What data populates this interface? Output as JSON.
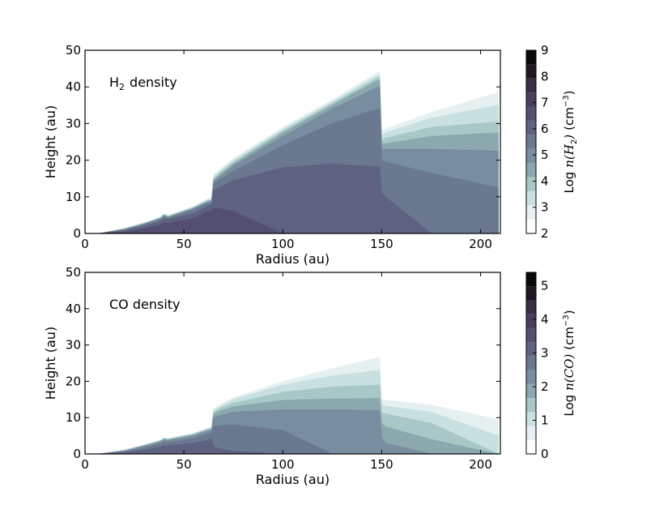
{
  "chart_data": [
    {
      "type": "contourf",
      "annotation": "H",
      "annotation_sub": "2",
      "annotation_suffix": "density",
      "xlabel": "Radius (au)",
      "ylabel": "Height (au)",
      "xlim": [
        0,
        210
      ],
      "ylim": [
        0,
        50
      ],
      "xticks": [
        "0",
        "50",
        "100",
        "150",
        "200"
      ],
      "yticks": [
        "0",
        "10",
        "20",
        "30",
        "40",
        "50"
      ],
      "colorbar": {
        "label_prefix": "Log",
        "label_var": "n(H",
        "label_var_sub": "2",
        "label_var_end": ")",
        "label_unit": "(cm",
        "label_unit_sup": "−3",
        "label_unit_end": ")",
        "min": 2,
        "max": 9,
        "ticks": [
          "2",
          "3",
          "4",
          "5",
          "6",
          "7",
          "8",
          "9"
        ],
        "colors": [
          "#ffffff",
          "#e6f0f0",
          "#c8e0e0",
          "#a8c8c8",
          "#8aa8ad",
          "#788da0",
          "#6a7890",
          "#5e6280",
          "#534f70",
          "#4a3e5f",
          "#3a2d45",
          "#1f1824",
          "#0a0a0a"
        ]
      },
      "x_samples": [
        0,
        7,
        20,
        30,
        38,
        40,
        42,
        55,
        62,
        64,
        65,
        68,
        75,
        100,
        125,
        148,
        149,
        150,
        152,
        175,
        209
      ],
      "contour_tops": [
        [
          0,
          0,
          1.5,
          3.0,
          4.5,
          5.5,
          5.0,
          7.5,
          9.5,
          9.8,
          16.0,
          17.5,
          20.5,
          29.0,
          36.5,
          44.0,
          44.0,
          28.0,
          28.5,
          33.0,
          38.5
        ],
        [
          0,
          0,
          1.4,
          2.9,
          4.4,
          5.3,
          4.8,
          7.3,
          9.2,
          9.5,
          15.5,
          17.0,
          20.0,
          28.5,
          36.0,
          43.2,
          43.2,
          26.5,
          27.5,
          31.5,
          35.0
        ],
        [
          0,
          0,
          1.3,
          2.8,
          4.3,
          5.2,
          4.7,
          7.1,
          9.0,
          9.2,
          15.0,
          16.5,
          19.5,
          28.0,
          35.5,
          42.5,
          42.5,
          25.5,
          26.0,
          29.0,
          30.5
        ],
        [
          0,
          0,
          1.2,
          2.7,
          4.2,
          5.0,
          4.6,
          7.0,
          8.8,
          9.0,
          14.6,
          16.0,
          19.0,
          27.5,
          35.0,
          41.8,
          41.8,
          24.5,
          24.5,
          26.5,
          27.5
        ],
        [
          0,
          0,
          1.1,
          2.6,
          4.0,
          4.8,
          4.4,
          6.8,
          8.5,
          8.7,
          14.2,
          15.5,
          18.5,
          26.5,
          34.0,
          40.0,
          40.0,
          23.0,
          23.0,
          23.0,
          22.5
        ],
        [
          0,
          0,
          1.0,
          2.4,
          3.8,
          4.6,
          4.2,
          6.5,
          8.2,
          8.4,
          13.5,
          14.5,
          17.0,
          24.0,
          30.0,
          34.0,
          34.0,
          20.0,
          19.5,
          16.5,
          12.5
        ],
        [
          0,
          0,
          0.8,
          2.0,
          3.3,
          4.0,
          3.8,
          5.5,
          7.5,
          7.8,
          11.8,
          12.5,
          14.5,
          18.0,
          19.0,
          18.2,
          18.2,
          11.0,
          10.0,
          0,
          0
        ],
        [
          0,
          0,
          0.5,
          1.3,
          2.3,
          2.8,
          2.8,
          4.2,
          6.0,
          6.2,
          6.8,
          6.8,
          6.0,
          0,
          0,
          0,
          0,
          0,
          0,
          0,
          0
        ]
      ]
    },
    {
      "type": "contourf",
      "annotation": "CO density",
      "xlabel": "Radius (au)",
      "ylabel": "Height (au)",
      "xlim": [
        0,
        210
      ],
      "ylim": [
        0,
        50
      ],
      "xticks": [
        "0",
        "50",
        "100",
        "150",
        "200"
      ],
      "yticks": [
        "0",
        "10",
        "20",
        "30",
        "40",
        "50"
      ],
      "colorbar": {
        "label_prefix": "Log",
        "label_var": "n(CO)",
        "label_unit": "(cm",
        "label_unit_sup": "−3",
        "label_unit_end": ")",
        "min": 0,
        "max": 5.4,
        "ticks": [
          "0",
          "1",
          "2",
          "3",
          "4",
          "5"
        ],
        "colors": [
          "#ffffff",
          "#e6f0f0",
          "#c8e0e0",
          "#a8c8c8",
          "#8aa8ad",
          "#788da0",
          "#6a7890",
          "#5e6280",
          "#534f70",
          "#4a3e5f",
          "#3a2d45",
          "#1f1824",
          "#0a0a0a"
        ]
      },
      "x_samples": [
        0,
        7,
        20,
        30,
        38,
        40,
        42,
        55,
        62,
        64,
        65,
        68,
        75,
        100,
        125,
        148,
        149,
        150,
        152,
        175,
        209
      ],
      "contour_tops": [
        [
          0,
          0,
          1.2,
          2.6,
          3.8,
          4.5,
          4.3,
          5.8,
          7.2,
          7.4,
          12.5,
          13.5,
          15.5,
          20.0,
          23.5,
          26.5,
          26.5,
          15.0,
          14.8,
          13.5,
          9.5
        ],
        [
          0,
          0,
          1.1,
          2.5,
          3.7,
          4.4,
          4.2,
          5.6,
          7.0,
          7.2,
          12.0,
          13.0,
          15.0,
          19.0,
          21.5,
          23.0,
          23.0,
          13.5,
          13.2,
          11.5,
          5.0
        ],
        [
          0,
          0,
          1.0,
          2.4,
          3.6,
          4.3,
          4.1,
          5.5,
          6.8,
          7.0,
          11.5,
          12.5,
          14.0,
          17.0,
          18.5,
          19.0,
          19.0,
          11.5,
          11.0,
          8.5,
          0
        ],
        [
          0,
          0,
          0.9,
          2.3,
          3.5,
          4.1,
          3.9,
          5.3,
          6.6,
          6.8,
          11.0,
          11.8,
          13.0,
          14.8,
          15.2,
          15.3,
          15.3,
          8.5,
          7.5,
          4.0,
          0
        ],
        [
          0,
          0,
          0.8,
          2.1,
          3.3,
          3.9,
          3.7,
          5.0,
          6.3,
          6.5,
          10.0,
          10.5,
          11.5,
          12.2,
          12.2,
          12.0,
          12.0,
          4.5,
          3.0,
          0,
          0
        ],
        [
          0,
          0,
          0.6,
          1.7,
          2.8,
          3.3,
          3.2,
          4.3,
          5.5,
          5.8,
          7.5,
          7.8,
          8.0,
          6.5,
          0,
          0,
          0,
          0,
          0,
          0,
          0
        ],
        [
          0,
          0,
          0.4,
          1.1,
          1.9,
          2.3,
          2.3,
          3.0,
          3.8,
          4.0,
          2.0,
          1.5,
          0.8,
          0,
          0,
          0,
          0,
          0,
          0,
          0,
          0
        ]
      ]
    }
  ]
}
